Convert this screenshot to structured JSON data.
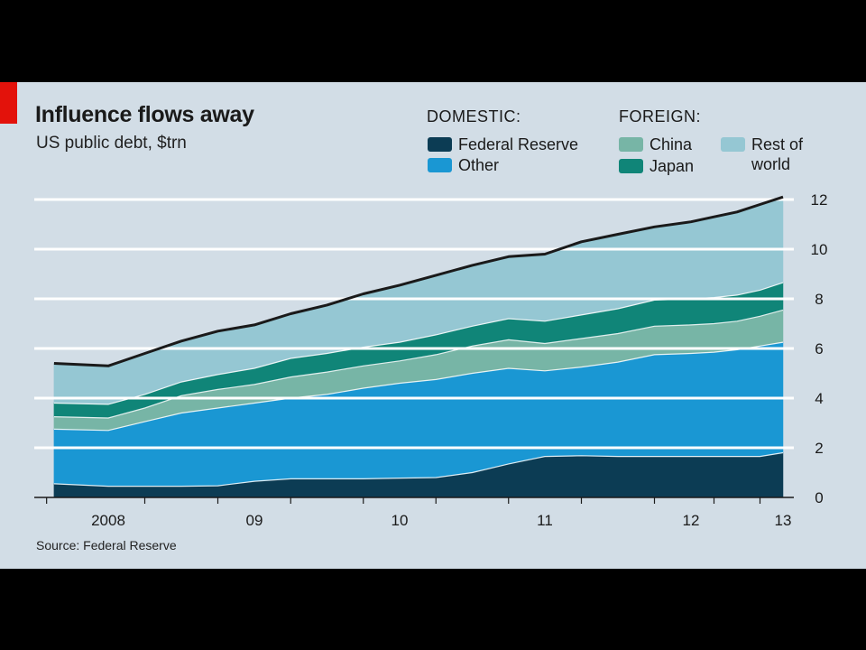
{
  "chart": {
    "title": "Influence flows away",
    "subtitle": "US public debt, $trn",
    "source": "Source: Federal Reserve",
    "legend": {
      "domestic_heading": "DOMESTIC:",
      "foreign_heading": "FOREIGN:",
      "items": [
        {
          "label": "Federal Reserve",
          "color": "#0c3c54"
        },
        {
          "label": "Other",
          "color": "#1a97d3"
        },
        {
          "label": "China",
          "color": "#77b5a6"
        },
        {
          "label": "Japan",
          "color": "#108578"
        },
        {
          "label": "Rest of\nworld",
          "color": "#95c7d3"
        }
      ]
    }
  },
  "chart_data": {
    "type": "area",
    "stacked": true,
    "title": "Influence flows away",
    "subtitle": "US public debt, $trn",
    "xlabel": "",
    "ylabel": "",
    "x_ticks": [
      "2008",
      "09",
      "10",
      "11",
      "12",
      "13"
    ],
    "y_ticks": [
      0,
      2,
      4,
      6,
      8,
      10,
      12
    ],
    "ylim": [
      0,
      12
    ],
    "xlim": [
      2007.7,
      2013.0
    ],
    "y_axis_position": "right",
    "grid": true,
    "total_line_color": "#1a1a1a",
    "x": [
      2007.78,
      2008.0,
      2008.25,
      2008.5,
      2008.75,
      2009.0,
      2009.25,
      2009.5,
      2009.75,
      2010.0,
      2010.25,
      2010.5,
      2010.75,
      2011.0,
      2011.25,
      2011.5,
      2011.75,
      2012.0,
      2012.25,
      2012.5,
      2012.75,
      2013.0
    ],
    "series": [
      {
        "name": "Federal Reserve",
        "color": "#0c3c54",
        "values": [
          0.55,
          0.45,
          0.45,
          0.45,
          0.47,
          0.65,
          0.75,
          0.75,
          0.75,
          0.78,
          0.8,
          1.0,
          1.35,
          1.65,
          1.68,
          1.65,
          1.65,
          1.65,
          1.65,
          1.65,
          1.65,
          1.8
        ]
      },
      {
        "name": "Other",
        "color": "#1a97d3",
        "values": [
          2.2,
          2.25,
          2.6,
          2.95,
          3.13,
          3.15,
          3.25,
          3.4,
          3.65,
          3.82,
          3.95,
          4.0,
          3.85,
          3.45,
          3.57,
          3.8,
          4.1,
          4.15,
          4.2,
          4.3,
          4.45,
          4.45
        ]
      },
      {
        "name": "China",
        "color": "#77b5a6",
        "values": [
          0.5,
          0.5,
          0.55,
          0.7,
          0.75,
          0.75,
          0.85,
          0.9,
          0.9,
          0.9,
          1.0,
          1.1,
          1.15,
          1.1,
          1.15,
          1.15,
          1.15,
          1.15,
          1.15,
          1.15,
          1.2,
          1.3
        ]
      },
      {
        "name": "Japan",
        "color": "#108578",
        "values": [
          0.55,
          0.55,
          0.55,
          0.55,
          0.6,
          0.65,
          0.75,
          0.75,
          0.75,
          0.75,
          0.8,
          0.8,
          0.85,
          0.9,
          0.95,
          1.0,
          1.05,
          1.05,
          1.05,
          1.05,
          1.05,
          1.1
        ]
      },
      {
        "name": "Rest of world",
        "color": "#95c7d3",
        "values": [
          1.6,
          1.55,
          1.65,
          1.65,
          1.75,
          1.75,
          1.8,
          1.95,
          2.15,
          2.3,
          2.4,
          2.45,
          2.5,
          2.7,
          2.95,
          3.0,
          2.95,
          3.1,
          3.25,
          3.35,
          3.45,
          3.45
        ]
      }
    ]
  }
}
